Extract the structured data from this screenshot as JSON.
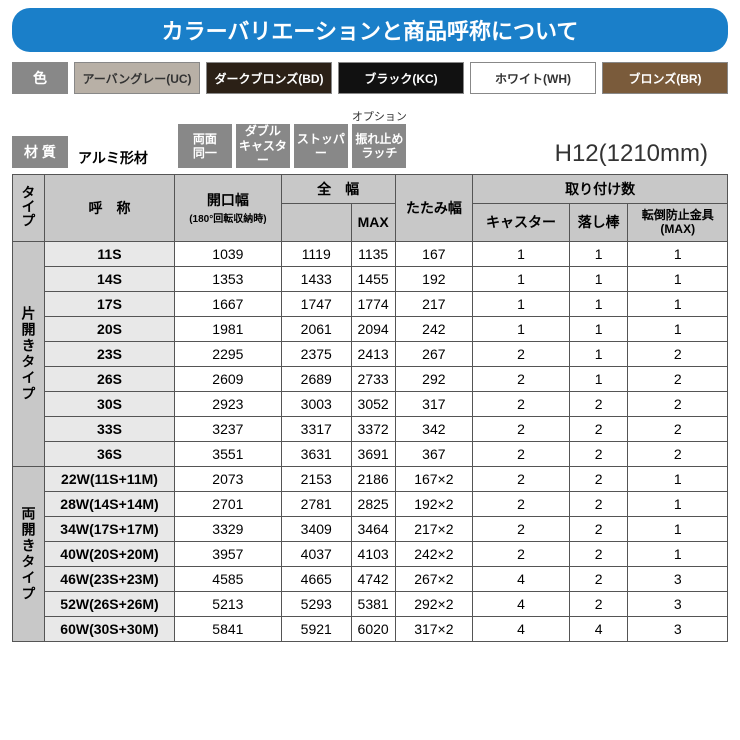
{
  "title": "カラーバリエーションと商品呼称について",
  "color_label": "色",
  "colors": [
    {
      "name": "アーバングレー(UC)",
      "bg": "#b8b0a6",
      "fg": "#333333"
    },
    {
      "name": "ダークブロンズ(BD)",
      "bg": "#2b2016",
      "fg": "#ffffff"
    },
    {
      "name": "ブラック(KC)",
      "bg": "#111111",
      "fg": "#ffffff"
    },
    {
      "name": "ホワイト(WH)",
      "bg": "#ffffff",
      "fg": "#333333"
    },
    {
      "name": "ブロンズ(BR)",
      "bg": "#7a5b3b",
      "fg": "#ffffff"
    }
  ],
  "material_label": "材 質",
  "material_text": "アルミ形材",
  "features": [
    {
      "top": "",
      "text": "両面\n同一"
    },
    {
      "top": "",
      "text": "ダブル\nキャスター"
    },
    {
      "top": "",
      "text": "ストッパー"
    },
    {
      "top": "オプション",
      "text": "振れ止め\nラッチ"
    }
  ],
  "model": "H12(1210mm)",
  "headers": {
    "type": "タイプ",
    "name": "呼　称",
    "open_w": "開口幅",
    "open_w_sub": "(180°回転収納時)",
    "full_w": "全　幅",
    "max": "MAX",
    "fold_w": "たたみ幅",
    "mount": "取り付け数",
    "caster": "キャスター",
    "drop": "落し棒",
    "anti": "転倒防止金具\n(MAX)"
  },
  "groups": [
    {
      "type_label": "片開きタイプ",
      "rows": [
        [
          "11S",
          "1039",
          "1119",
          "1135",
          "167",
          "1",
          "1",
          "1"
        ],
        [
          "14S",
          "1353",
          "1433",
          "1455",
          "192",
          "1",
          "1",
          "1"
        ],
        [
          "17S",
          "1667",
          "1747",
          "1774",
          "217",
          "1",
          "1",
          "1"
        ],
        [
          "20S",
          "1981",
          "2061",
          "2094",
          "242",
          "1",
          "1",
          "1"
        ],
        [
          "23S",
          "2295",
          "2375",
          "2413",
          "267",
          "2",
          "1",
          "2"
        ],
        [
          "26S",
          "2609",
          "2689",
          "2733",
          "292",
          "2",
          "1",
          "2"
        ],
        [
          "30S",
          "2923",
          "3003",
          "3052",
          "317",
          "2",
          "2",
          "2"
        ],
        [
          "33S",
          "3237",
          "3317",
          "3372",
          "342",
          "2",
          "2",
          "2"
        ],
        [
          "36S",
          "3551",
          "3631",
          "3691",
          "367",
          "2",
          "2",
          "2"
        ]
      ]
    },
    {
      "type_label": "両開きタイプ",
      "rows": [
        [
          "22W(11S+11M)",
          "2073",
          "2153",
          "2186",
          "167×2",
          "2",
          "2",
          "1"
        ],
        [
          "28W(14S+14M)",
          "2701",
          "2781",
          "2825",
          "192×2",
          "2",
          "2",
          "1"
        ],
        [
          "34W(17S+17M)",
          "3329",
          "3409",
          "3464",
          "217×2",
          "2",
          "2",
          "1"
        ],
        [
          "40W(20S+20M)",
          "3957",
          "4037",
          "4103",
          "242×2",
          "2",
          "2",
          "1"
        ],
        [
          "46W(23S+23M)",
          "4585",
          "4665",
          "4742",
          "267×2",
          "4",
          "2",
          "3"
        ],
        [
          "52W(26S+26M)",
          "5213",
          "5293",
          "5381",
          "292×2",
          "4",
          "2",
          "3"
        ],
        [
          "60W(30S+30M)",
          "5841",
          "5921",
          "6020",
          "317×2",
          "4",
          "4",
          "3"
        ]
      ]
    }
  ]
}
